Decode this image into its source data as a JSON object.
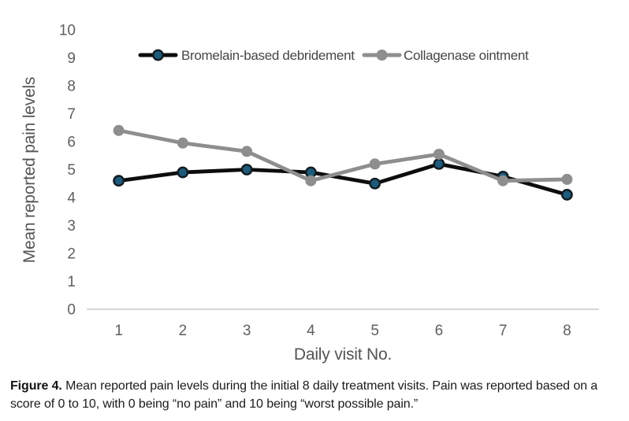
{
  "chart_data": {
    "type": "line",
    "xlabel": "Daily visit No.",
    "ylabel": "Mean reported pain levels",
    "x": [
      1,
      2,
      3,
      4,
      5,
      6,
      7,
      8
    ],
    "ylim": [
      0,
      10
    ],
    "ytick_step": 1,
    "grid": false,
    "legend_position": "top-center",
    "series": [
      {
        "name": "Bromelain-based debridement",
        "line_color": "#0d0d0d",
        "marker_fill": "#1e5b7a",
        "marker_stroke": "#121b21",
        "values": [
          4.6,
          4.9,
          5.0,
          4.9,
          4.5,
          5.2,
          4.75,
          4.1
        ]
      },
      {
        "name": "Collagenase ointment",
        "line_color": "#8e8e8e",
        "marker_fill": "#8e8e8e",
        "marker_stroke": "#8e8e8e",
        "values": [
          6.4,
          5.95,
          5.65,
          4.6,
          5.2,
          5.55,
          4.6,
          4.65
        ]
      }
    ]
  },
  "figure": {
    "caption_label": "Figure 4.",
    "caption_text": "Mean reported pain levels during the initial 8 daily treatment visits. Pain was reported based on a score of 0 to 10, with 0 being “no pain” and 10 being “worst possible pain.”"
  }
}
